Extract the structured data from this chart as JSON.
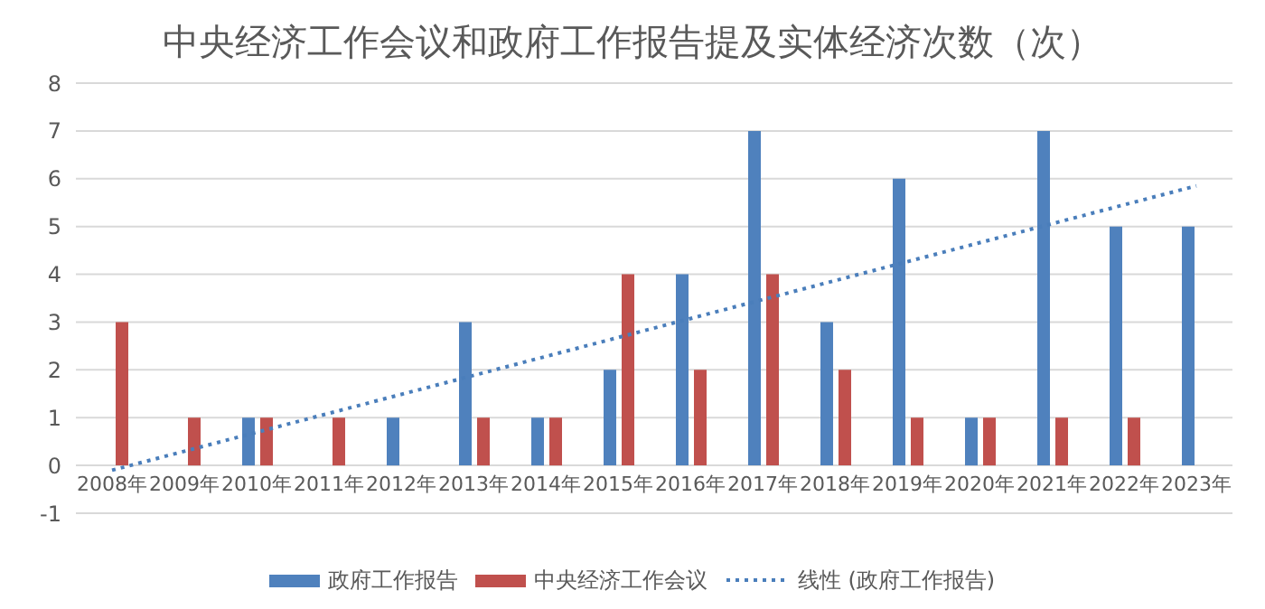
{
  "chart_data": {
    "type": "bar",
    "title": "中央经济工作会议和政府工作报告提及实体经济次数（次）",
    "categories": [
      "2008年",
      "2009年",
      "2010年",
      "2011年",
      "2012年",
      "2013年",
      "2014年",
      "2015年",
      "2016年",
      "2017年",
      "2018年",
      "2019年",
      "2020年",
      "2021年",
      "2022年",
      "2023年"
    ],
    "series": [
      {
        "name": "政府工作报告",
        "color": "#4f81bd",
        "values": [
          null,
          null,
          1,
          null,
          1,
          3,
          1,
          2,
          4,
          7,
          3,
          6,
          1,
          7,
          5,
          5
        ]
      },
      {
        "name": "中央经济工作会议",
        "color": "#c0504d",
        "values": [
          3,
          1,
          1,
          1,
          null,
          1,
          1,
          4,
          2,
          4,
          2,
          1,
          1,
          1,
          1,
          null
        ]
      },
      {
        "name": "线性 (政府工作报告)",
        "type": "line",
        "color": "#4a7ebb",
        "line_style": "dotted",
        "x": [
          "2008年",
          "2023年"
        ],
        "values": [
          -0.1,
          5.85
        ]
      }
    ],
    "ylim": [
      -1,
      8
    ],
    "yticks": [
      -1,
      0,
      1,
      2,
      3,
      4,
      5,
      6,
      7,
      8
    ],
    "grid": "y",
    "legend": "bottom"
  }
}
